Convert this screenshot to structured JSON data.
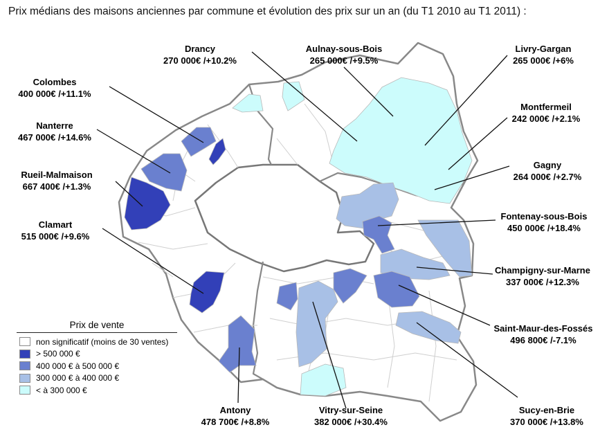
{
  "title": "Prix médians des maisons anciennes par commune et évolution des prix sur un an (du T1 2010 au T1 2011) :",
  "colors": {
    "c_gt500": "#3240b8",
    "c_400_500": "#6a80cf",
    "c_300_400": "#a8c0e6",
    "c_lt300": "#ccfcfc",
    "c_none": "#ffffff",
    "c_boundary": "#888888",
    "c_commune": "#cfcfcf"
  },
  "legend": {
    "title": "Prix de vente",
    "items": [
      {
        "label": "non significatif (moins de 30 ventes)",
        "color": "#ffffff"
      },
      {
        "label": "> 500 000 €",
        "color": "#3240b8"
      },
      {
        "label": "400 000 € à 500 000 €",
        "color": "#6a80cf"
      },
      {
        "label": "300 000 € à 400 000 €",
        "color": "#a8c0e6"
      },
      {
        "label": "< à 300 000 €",
        "color": "#ccfcfc"
      }
    ]
  },
  "communes": [
    {
      "name": "Drancy",
      "value": "270 000€ /+10.2%"
    },
    {
      "name": "Aulnay-sous-Bois",
      "value": "265 000€ /+9.5%"
    },
    {
      "name": "Livry-Gargan",
      "value": "265 000€ /+6%"
    },
    {
      "name": "Colombes",
      "value": "400 000€ /+11.1%"
    },
    {
      "name": "Montfermeil",
      "value": "242 000€ /+2.1%"
    },
    {
      "name": "Nanterre",
      "value": "467 000€ /+14.6%"
    },
    {
      "name": "Gagny",
      "value": "264 000€ /+2.7%"
    },
    {
      "name": "Rueil-Malmaison",
      "value": "667 400€ /+1.3%"
    },
    {
      "name": "Fontenay-sous-Bois",
      "value": "450 000€ /+18.4%"
    },
    {
      "name": "Clamart",
      "value": "515 000€ /+9.6%"
    },
    {
      "name": "Champigny-sur-Marne",
      "value": "337 000€ /+12.3%"
    },
    {
      "name": "Saint-Maur-des-Fossés",
      "value": "496 800€ /-7.1%"
    },
    {
      "name": "Antony",
      "value": "478 700€ /+8.8%"
    },
    {
      "name": "Vitry-sur-Seine",
      "value": "382 000€ /+30.4%"
    },
    {
      "name": "Sucy-en-Brie",
      "value": "370 000€ /+13.8%"
    }
  ]
}
